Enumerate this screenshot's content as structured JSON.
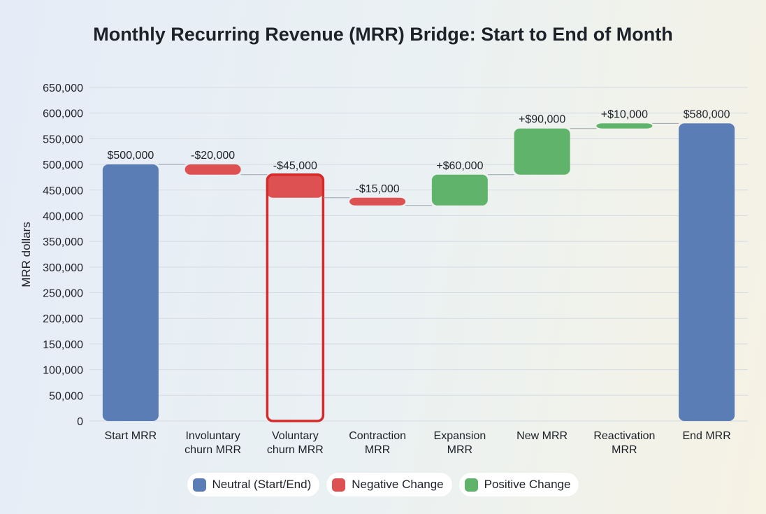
{
  "chart_data": {
    "type": "waterfall",
    "title": "Monthly Recurring Revenue (MRR) Bridge: Start to End of Month",
    "ylabel": "MRR dollars",
    "xlabel": "",
    "ylim": [
      0,
      650000
    ],
    "yticks": [
      "0",
      "50,000",
      "100,000",
      "150,000",
      "200,000",
      "250,000",
      "300,000",
      "350,000",
      "400,000",
      "450,000",
      "500,000",
      "550,000",
      "600,000",
      "650,000"
    ],
    "grid": true,
    "categories": [
      [
        "Start MRR"
      ],
      [
        "Involuntary",
        "churn MRR"
      ],
      [
        "Voluntary",
        "churn MRR"
      ],
      [
        "Contraction",
        "MRR"
      ],
      [
        "Expansion",
        "MRR"
      ],
      [
        "New MRR"
      ],
      [
        "Reactivation",
        "MRR"
      ],
      [
        "End MRR"
      ]
    ],
    "values": [
      500000,
      -20000,
      -45000,
      -15000,
      60000,
      90000,
      10000,
      580000
    ],
    "kinds": [
      "neutral",
      "negative",
      "negative",
      "negative",
      "positive",
      "positive",
      "positive",
      "neutral"
    ],
    "data_labels": [
      "$500,000",
      "-$20,000",
      "-$45,000",
      "-$15,000",
      "+$60,000",
      "+$90,000",
      "+$10,000",
      "$580,000"
    ],
    "highlighted_category": "Voluntary churn MRR",
    "colors": {
      "neutral": "#5b7db5",
      "negative": "#dd5152",
      "positive": "#60b36a",
      "highlight": "#d42a2a"
    },
    "legend": {
      "position": "bottom",
      "items": [
        {
          "label": "Neutral (Start/End)",
          "kind": "neutral"
        },
        {
          "label": "Negative Change",
          "kind": "negative"
        },
        {
          "label": "Positive Change",
          "kind": "positive"
        }
      ]
    }
  }
}
